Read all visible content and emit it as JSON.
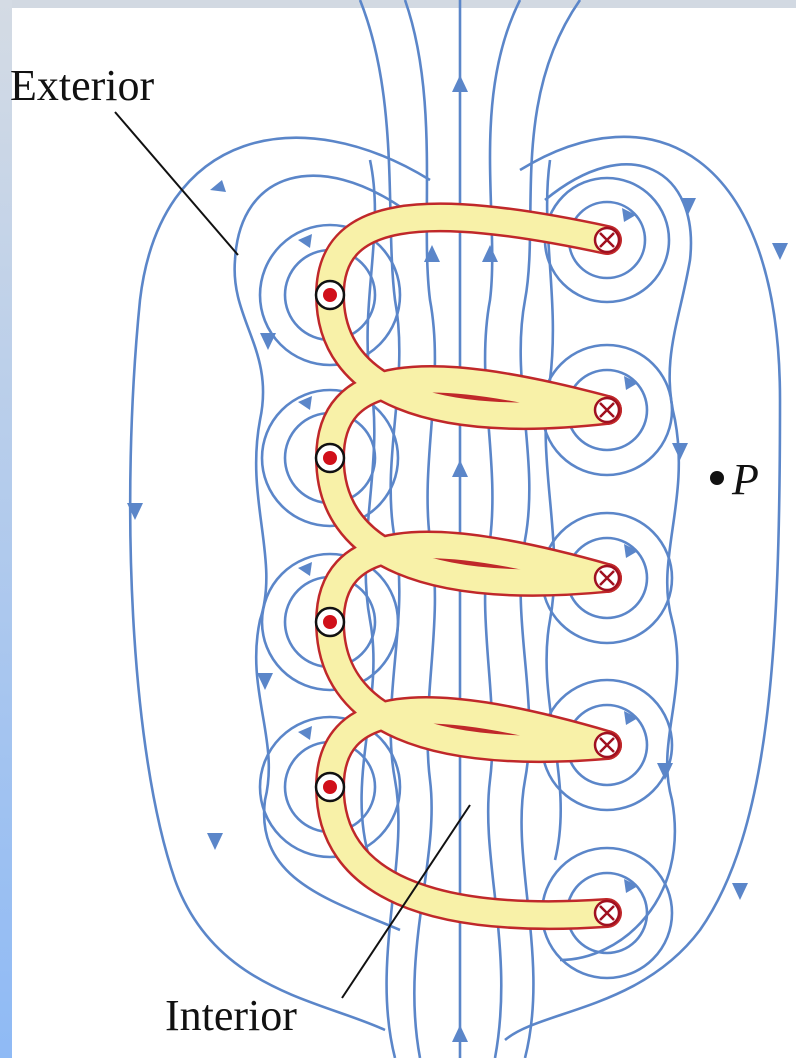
{
  "labels": {
    "exterior": "Exterior",
    "interior": "Interior",
    "point": "P"
  }
}
